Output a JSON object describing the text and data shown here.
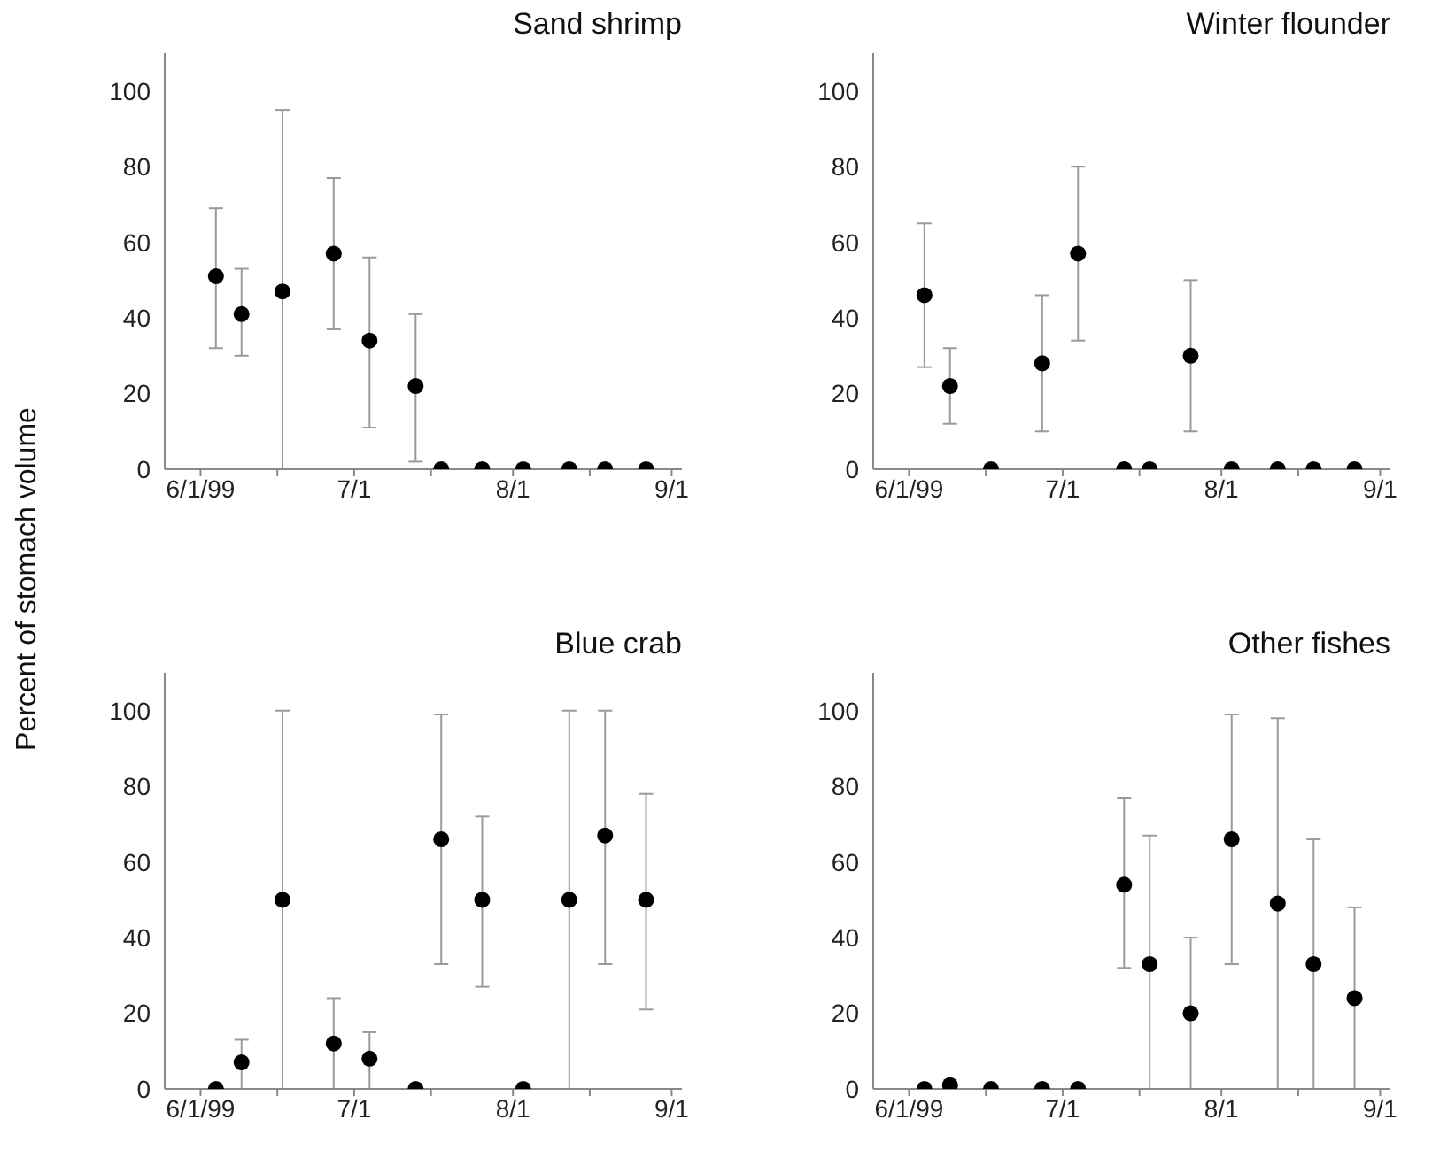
{
  "chart_data": [
    {
      "type": "scatter",
      "title": "Sand shrimp",
      "ylabel": "Percent of stomach volume",
      "marker": "circle",
      "xlim": [
        "1999-05-25",
        "1999-09-03"
      ],
      "xticks": [
        {
          "value": "1999-06-01",
          "label": "6/1/99"
        },
        {
          "value": "1999-06-16",
          "label": null
        },
        {
          "value": "1999-07-01",
          "label": "7/1"
        },
        {
          "value": "1999-07-16",
          "label": null
        },
        {
          "value": "1999-08-01",
          "label": "8/1"
        },
        {
          "value": "1999-08-16",
          "label": null
        },
        {
          "value": "1999-09-01",
          "label": "9/1"
        }
      ],
      "ylim": [
        0,
        110
      ],
      "yticks": [
        0,
        20,
        40,
        60,
        80,
        100
      ],
      "x": [
        "1999-06-04",
        "1999-06-09",
        "1999-06-17",
        "1999-06-27",
        "1999-07-04",
        "1999-07-13",
        "1999-07-18",
        "1999-07-26",
        "1999-08-03",
        "1999-08-12",
        "1999-08-19",
        "1999-08-27"
      ],
      "series": [
        {
          "color": "#000000",
          "values": [
            51,
            41,
            47,
            57,
            34,
            22,
            0,
            0,
            0,
            0,
            0,
            0
          ],
          "errors": [
            [
              32,
              69
            ],
            [
              30,
              53
            ],
            [
              0,
              95
            ],
            [
              37,
              77
            ],
            [
              11,
              56
            ],
            [
              2,
              41
            ],
            null,
            null,
            null,
            null,
            null,
            null
          ]
        }
      ]
    },
    {
      "type": "scatter",
      "title": "Winter flounder",
      "marker": "circle",
      "xlim": [
        "1999-05-25",
        "1999-09-03"
      ],
      "xticks": [
        {
          "value": "1999-06-01",
          "label": "6/1/99"
        },
        {
          "value": "1999-06-16",
          "label": null
        },
        {
          "value": "1999-07-01",
          "label": "7/1"
        },
        {
          "value": "1999-07-16",
          "label": null
        },
        {
          "value": "1999-08-01",
          "label": "8/1"
        },
        {
          "value": "1999-08-16",
          "label": null
        },
        {
          "value": "1999-09-01",
          "label": "9/1"
        }
      ],
      "ylim": [
        0,
        110
      ],
      "yticks": [
        0,
        20,
        40,
        60,
        80,
        100
      ],
      "x": [
        "1999-06-04",
        "1999-06-09",
        "1999-06-17",
        "1999-06-27",
        "1999-07-04",
        "1999-07-13",
        "1999-07-18",
        "1999-07-26",
        "1999-08-03",
        "1999-08-12",
        "1999-08-19",
        "1999-08-27"
      ],
      "series": [
        {
          "color": "#000000",
          "values": [
            46,
            22,
            0,
            28,
            57,
            0,
            0,
            30,
            0,
            0,
            0,
            0
          ],
          "errors": [
            [
              27,
              65
            ],
            [
              12,
              32
            ],
            null,
            [
              10,
              46
            ],
            [
              34,
              80
            ],
            null,
            null,
            [
              10,
              50
            ],
            null,
            null,
            null,
            null
          ]
        }
      ]
    },
    {
      "type": "scatter",
      "title": "Blue crab",
      "marker": "circle",
      "xlim": [
        "1999-05-25",
        "1999-09-03"
      ],
      "xticks": [
        {
          "value": "1999-06-01",
          "label": "6/1/99"
        },
        {
          "value": "1999-06-16",
          "label": null
        },
        {
          "value": "1999-07-01",
          "label": "7/1"
        },
        {
          "value": "1999-07-16",
          "label": null
        },
        {
          "value": "1999-08-01",
          "label": "8/1"
        },
        {
          "value": "1999-08-16",
          "label": null
        },
        {
          "value": "1999-09-01",
          "label": "9/1"
        }
      ],
      "ylim": [
        0,
        110
      ],
      "yticks": [
        0,
        20,
        40,
        60,
        80,
        100
      ],
      "x": [
        "1999-06-04",
        "1999-06-09",
        "1999-06-17",
        "1999-06-27",
        "1999-07-04",
        "1999-07-13",
        "1999-07-18",
        "1999-07-26",
        "1999-08-03",
        "1999-08-12",
        "1999-08-19",
        "1999-08-27"
      ],
      "series": [
        {
          "color": "#000000",
          "values": [
            0,
            7,
            50,
            12,
            8,
            0,
            66,
            50,
            0,
            50,
            67,
            50
          ],
          "errors": [
            null,
            [
              0,
              13
            ],
            [
              0,
              100
            ],
            [
              0,
              24
            ],
            [
              0,
              15
            ],
            null,
            [
              33,
              99
            ],
            [
              27,
              72
            ],
            null,
            [
              0,
              100
            ],
            [
              33,
              100
            ],
            [
              21,
              78
            ]
          ]
        }
      ]
    },
    {
      "type": "scatter",
      "title": "Other fishes",
      "marker": "circle",
      "xlim": [
        "1999-05-25",
        "1999-09-03"
      ],
      "xticks": [
        {
          "value": "1999-06-01",
          "label": "6/1/99"
        },
        {
          "value": "1999-06-16",
          "label": null
        },
        {
          "value": "1999-07-01",
          "label": "7/1"
        },
        {
          "value": "1999-07-16",
          "label": null
        },
        {
          "value": "1999-08-01",
          "label": "8/1"
        },
        {
          "value": "1999-08-16",
          "label": null
        },
        {
          "value": "1999-09-01",
          "label": "9/1"
        }
      ],
      "ylim": [
        0,
        110
      ],
      "yticks": [
        0,
        20,
        40,
        60,
        80,
        100
      ],
      "x": [
        "1999-06-04",
        "1999-06-09",
        "1999-06-17",
        "1999-06-27",
        "1999-07-04",
        "1999-07-13",
        "1999-07-18",
        "1999-07-26",
        "1999-08-03",
        "1999-08-12",
        "1999-08-19",
        "1999-08-27"
      ],
      "series": [
        {
          "color": "#000000",
          "values": [
            0,
            1,
            0,
            0,
            0,
            54,
            33,
            20,
            66,
            49,
            33,
            24
          ],
          "errors": [
            null,
            null,
            null,
            null,
            null,
            [
              32,
              77
            ],
            [
              0,
              67
            ],
            [
              0,
              40
            ],
            [
              33,
              99
            ],
            [
              0,
              98
            ],
            [
              0,
              66
            ],
            [
              0,
              48
            ]
          ]
        }
      ]
    }
  ]
}
